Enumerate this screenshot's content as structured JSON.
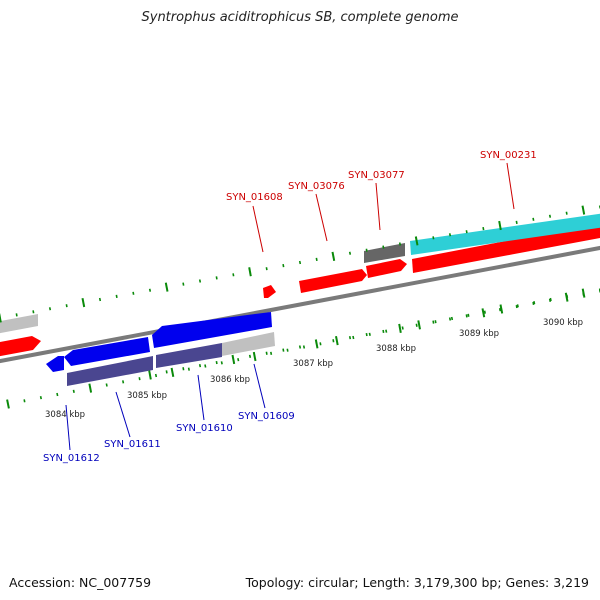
{
  "title": "Syntrophus aciditrophicus SB, complete genome",
  "footer": {
    "accession": "Accession: NC_007759",
    "summary": "Topology: circular; Length: 3,179,300 bp; Genes: 3,219"
  },
  "colors": {
    "forward_gene": "#ff0000",
    "reverse_gene": "#0000ee",
    "pseudo_gene": "#c0c0c0",
    "dark_gene": "#666666",
    "dark_reverse_gene": "#4a4690",
    "cyan_gene": "#2ecfd6",
    "axis": "#7a7a7a",
    "tick": "#0a8a0a",
    "label_forward": "#cc0000",
    "label_reverse": "#0000bb"
  },
  "axis": {
    "kbp_labels": [
      "3084 kbp",
      "3085 kbp",
      "3086 kbp",
      "3087 kbp",
      "3088 kbp",
      "3089 kbp",
      "3090 kbp"
    ]
  },
  "genes_forward": [
    "SYN_01608",
    "SYN_03076",
    "SYN_03077",
    "SYN_00231"
  ],
  "genes_reverse": [
    "SYN_01612",
    "SYN_01611",
    "SYN_01610",
    "SYN_01609"
  ]
}
